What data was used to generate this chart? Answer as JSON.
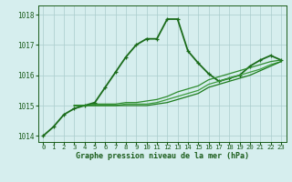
{
  "title": "Graphe pression niveau de la mer (hPa)",
  "background_color": "#d6eeee",
  "grid_color": "#aacccc",
  "line_color_main": "#1a5c1a",
  "xlabel_color": "#1a5c1a",
  "ylim": [
    1013.8,
    1018.3
  ],
  "yticks": [
    1014,
    1015,
    1016,
    1017,
    1018
  ],
  "xlim": [
    -0.5,
    23.5
  ],
  "xticks": [
    0,
    1,
    2,
    3,
    4,
    5,
    6,
    7,
    8,
    9,
    10,
    11,
    12,
    13,
    14,
    15,
    16,
    17,
    18,
    19,
    20,
    21,
    22,
    23
  ],
  "series": [
    {
      "x": [
        0,
        1,
        2,
        3,
        4,
        5,
        6,
        7,
        8,
        9,
        10,
        11,
        12,
        13,
        14,
        15,
        16,
        17,
        18,
        19,
        20,
        21,
        22,
        23
      ],
      "y": [
        1014.0,
        1014.3,
        1014.7,
        1014.9,
        1015.0,
        1015.1,
        1015.6,
        1016.1,
        1016.6,
        1017.0,
        1017.2,
        1017.2,
        1017.85,
        1017.85,
        1016.8,
        1016.4,
        1016.05,
        1015.8,
        1015.9,
        1016.0,
        1016.3,
        1016.5,
        1016.65,
        1016.5
      ],
      "color": "#1a6b1a",
      "lw": 1.3,
      "marker": "+"
    },
    {
      "x": [
        3,
        4,
        5,
        6,
        7,
        8,
        9,
        10,
        11,
        12,
        13,
        14,
        15,
        16,
        17,
        18,
        19,
        20,
        21,
        22,
        23
      ],
      "y": [
        1015.0,
        1015.0,
        1015.05,
        1015.05,
        1015.05,
        1015.1,
        1015.1,
        1015.15,
        1015.2,
        1015.3,
        1015.45,
        1015.55,
        1015.65,
        1015.85,
        1015.95,
        1016.05,
        1016.15,
        1016.25,
        1016.35,
        1016.45,
        1016.5
      ],
      "color": "#2d8b2d",
      "lw": 0.9,
      "marker": null
    },
    {
      "x": [
        3,
        4,
        5,
        6,
        7,
        8,
        9,
        10,
        11,
        12,
        13,
        14,
        15,
        16,
        17,
        18,
        19,
        20,
        21,
        22,
        23
      ],
      "y": [
        1015.0,
        1015.0,
        1015.0,
        1015.0,
        1015.0,
        1015.05,
        1015.05,
        1015.05,
        1015.1,
        1015.2,
        1015.3,
        1015.4,
        1015.5,
        1015.7,
        1015.8,
        1015.9,
        1016.0,
        1016.1,
        1016.2,
        1016.35,
        1016.45
      ],
      "color": "#3a9a3a",
      "lw": 0.9,
      "marker": null
    },
    {
      "x": [
        3,
        4,
        5,
        6,
        7,
        8,
        9,
        10,
        11,
        12,
        13,
        14,
        15,
        16,
        17,
        18,
        19,
        20,
        21,
        22,
        23
      ],
      "y": [
        1015.0,
        1015.0,
        1015.0,
        1015.0,
        1015.0,
        1015.0,
        1015.0,
        1015.0,
        1015.05,
        1015.1,
        1015.2,
        1015.3,
        1015.4,
        1015.6,
        1015.7,
        1015.8,
        1015.9,
        1016.0,
        1016.15,
        1016.3,
        1016.45
      ],
      "color": "#1a7a1a",
      "lw": 0.9,
      "marker": null
    }
  ]
}
